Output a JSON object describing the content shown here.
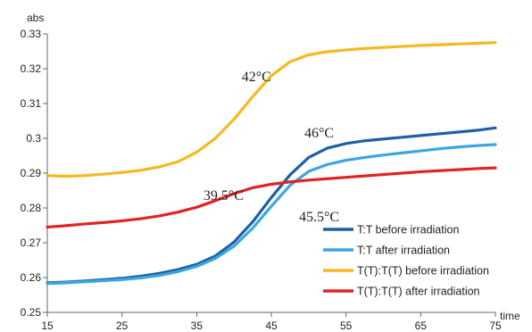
{
  "chart_data": {
    "type": "line",
    "xlabel": "time",
    "ylabel": "abs",
    "xlim": [
      15,
      75
    ],
    "ylim": [
      0.25,
      0.33
    ],
    "x_ticks": [
      "15",
      "25",
      "35",
      "45",
      "55",
      "65",
      "75"
    ],
    "y_ticks": [
      "0.25",
      "0.26",
      "0.27",
      "0.28",
      "0.29",
      "0.3",
      "0.31",
      "0.32",
      "0.33"
    ],
    "grid": false,
    "legend_position": "bottom-right",
    "x": [
      15,
      17.5,
      20,
      22.5,
      25,
      27.5,
      30,
      32.5,
      35,
      37.5,
      40,
      42.5,
      45,
      47.5,
      50,
      52.5,
      55,
      57.5,
      60,
      62.5,
      65,
      67.5,
      70,
      72.5,
      75
    ],
    "series": [
      {
        "name": "T:T before irradiation",
        "color": "#1f5fa6",
        "values": [
          0.2585,
          0.2587,
          0.259,
          0.2594,
          0.2598,
          0.2604,
          0.2612,
          0.2623,
          0.2638,
          0.2662,
          0.2702,
          0.276,
          0.283,
          0.2895,
          0.2945,
          0.2972,
          0.2985,
          0.2993,
          0.2998,
          0.3003,
          0.3008,
          0.3013,
          0.3018,
          0.3023,
          0.303
        ]
      },
      {
        "name": "T:T after irradiation",
        "color": "#3aa7e0",
        "values": [
          0.2583,
          0.2585,
          0.2588,
          0.2591,
          0.2594,
          0.2599,
          0.2606,
          0.2617,
          0.2632,
          0.2655,
          0.269,
          0.2742,
          0.2805,
          0.2865,
          0.2905,
          0.2925,
          0.2937,
          0.2945,
          0.2952,
          0.2958,
          0.2964,
          0.297,
          0.2975,
          0.2979,
          0.2982
        ]
      },
      {
        "name": "T(T):T(T) before irradiation",
        "color": "#f5b922",
        "values": [
          0.2893,
          0.2891,
          0.2893,
          0.2897,
          0.2902,
          0.2908,
          0.2918,
          0.2933,
          0.296,
          0.3,
          0.3055,
          0.312,
          0.318,
          0.322,
          0.324,
          0.3249,
          0.3254,
          0.3258,
          0.3261,
          0.3264,
          0.3267,
          0.3269,
          0.3271,
          0.3273,
          0.3275
        ]
      },
      {
        "name": "T(T):T(T) after irradiation",
        "color": "#e02424",
        "values": [
          0.2745,
          0.2749,
          0.2754,
          0.2758,
          0.2763,
          0.2769,
          0.2777,
          0.2788,
          0.2802,
          0.2821,
          0.2841,
          0.2858,
          0.2868,
          0.2875,
          0.288,
          0.2884,
          0.2888,
          0.2892,
          0.2896,
          0.29,
          0.2904,
          0.2907,
          0.291,
          0.2913,
          0.2915
        ]
      }
    ],
    "annotations": [
      {
        "text": "42°C",
        "x": 43,
        "y": 0.3164
      },
      {
        "text": "39.5°C",
        "x": 38.6,
        "y": 0.2823
      },
      {
        "text": "46°C",
        "x": 51.4,
        "y": 0.3003
      },
      {
        "text": "45.5°C",
        "x": 51.4,
        "y": 0.2762
      }
    ]
  }
}
